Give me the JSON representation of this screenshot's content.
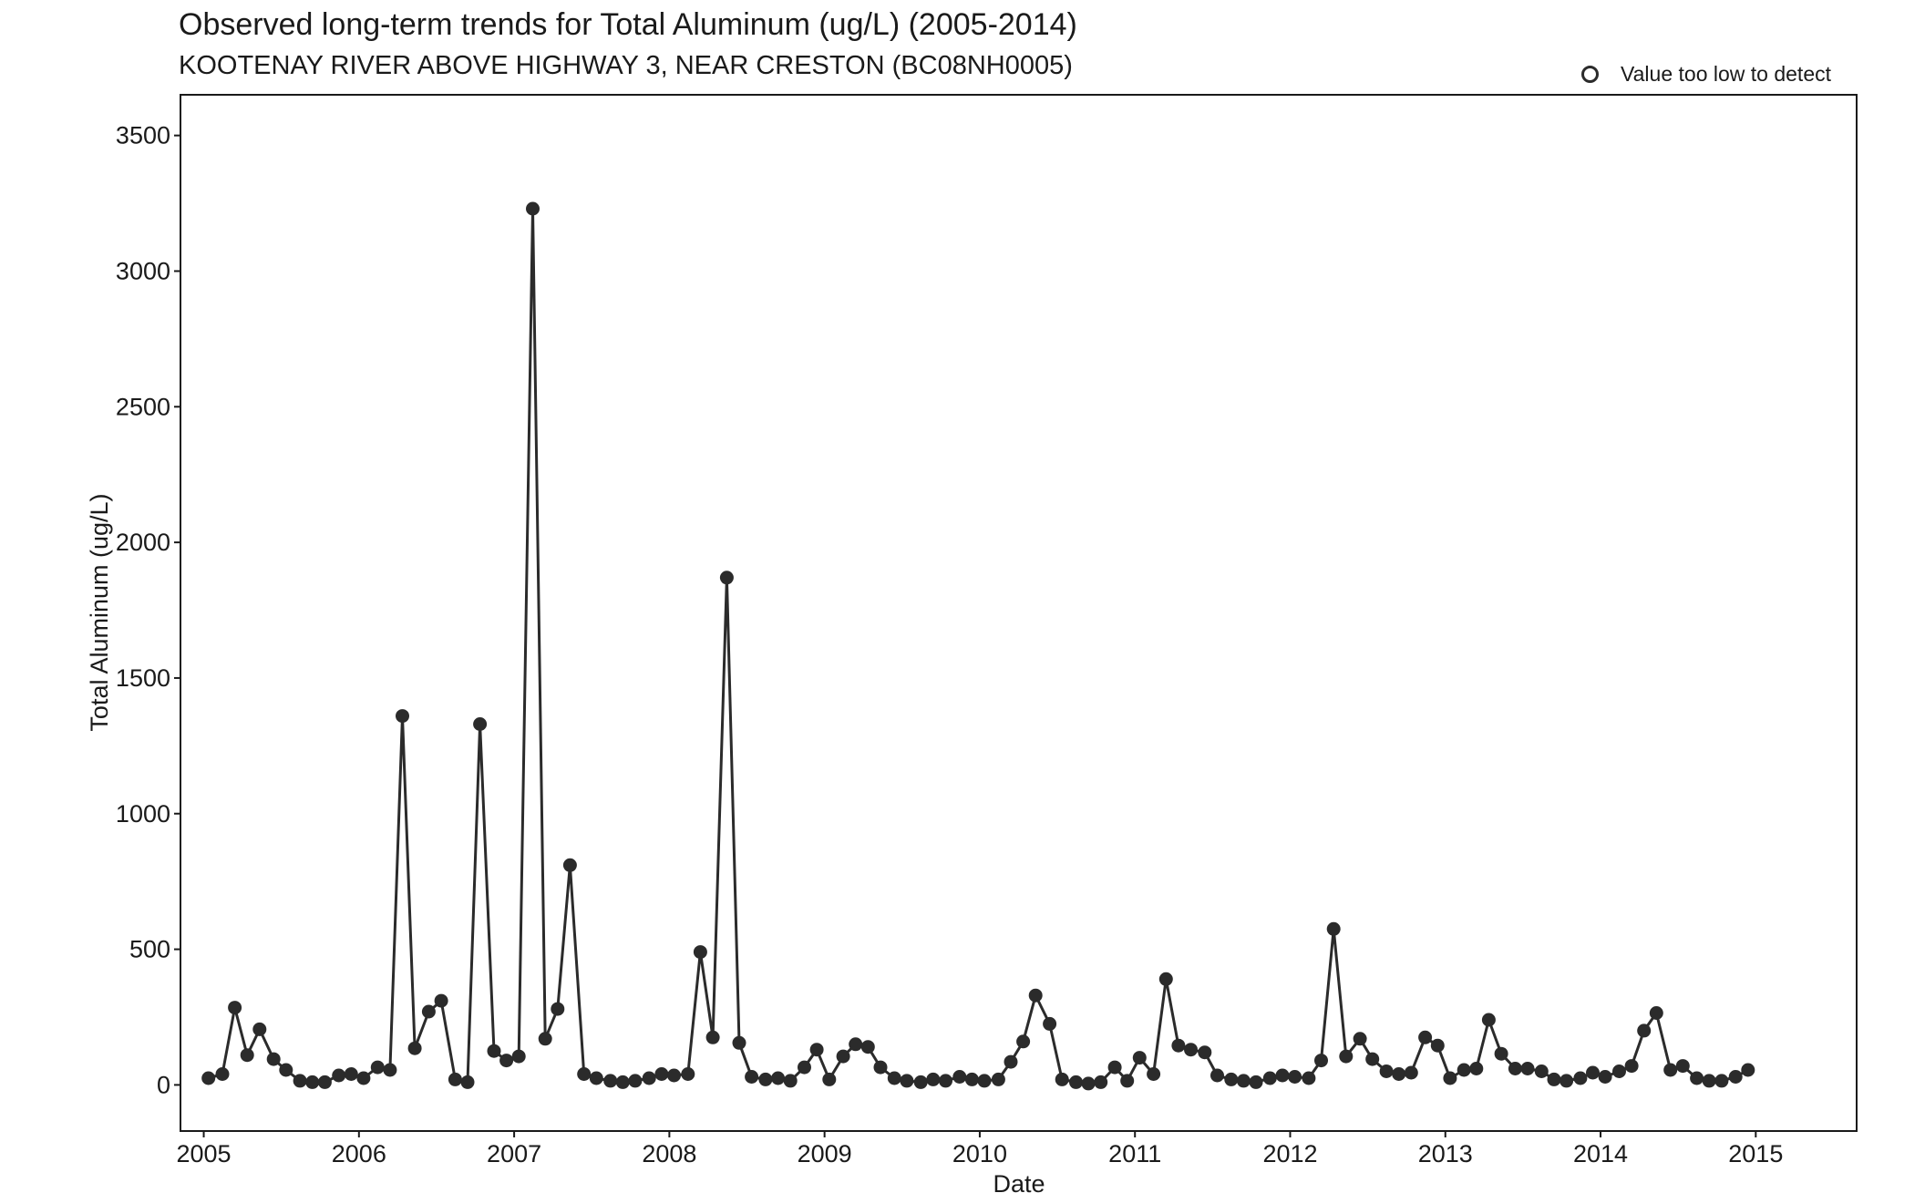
{
  "chart_data": {
    "type": "line",
    "title": "Observed long-term trends for Total Aluminum (ug/L) (2005-2014)",
    "subtitle": "KOOTENAY RIVER ABOVE HIGHWAY 3, NEAR CRESTON (BC08NH0005)",
    "xlabel": "Date",
    "ylabel": "Total Aluminum (ug/L)",
    "xlim": [
      2004.85,
      2015.65
    ],
    "ylim": [
      -170,
      3650
    ],
    "x_ticks": [
      2005,
      2006,
      2007,
      2008,
      2009,
      2010,
      2011,
      2012,
      2013,
      2014,
      2015
    ],
    "x_tick_labels": [
      "2005",
      "2006",
      "2007",
      "2008",
      "2009",
      "2010",
      "2011",
      "2012",
      "2013",
      "2014",
      "2015"
    ],
    "y_ticks": [
      0,
      500,
      1000,
      1500,
      2000,
      2500,
      3000,
      3500
    ],
    "y_tick_labels": [
      "0",
      "500",
      "1000",
      "1500",
      "2000",
      "2500",
      "3000",
      "3500"
    ],
    "grid": false,
    "legend": {
      "position": "top-right",
      "entries": [
        {
          "label": "Value too low to detect",
          "marker": "open-circle"
        }
      ]
    },
    "colors": {
      "series": "#2b2b2b",
      "axis": "#1a1a1a"
    },
    "series": [
      {
        "x": [
          2005.03,
          2005.12,
          2005.2,
          2005.28,
          2005.36,
          2005.45,
          2005.53,
          2005.62,
          2005.7,
          2005.78,
          2005.87,
          2005.95,
          2006.03,
          2006.12,
          2006.2,
          2006.28,
          2006.36,
          2006.45,
          2006.53,
          2006.62,
          2006.7,
          2006.78,
          2006.87,
          2006.95,
          2007.03,
          2007.12,
          2007.2,
          2007.28,
          2007.36,
          2007.45,
          2007.53,
          2007.62,
          2007.7,
          2007.78,
          2007.87,
          2007.95,
          2008.03,
          2008.12,
          2008.2,
          2008.28,
          2008.37,
          2008.45,
          2008.53,
          2008.62,
          2008.7,
          2008.78,
          2008.87,
          2008.95,
          2009.03,
          2009.12,
          2009.2,
          2009.28,
          2009.36,
          2009.45,
          2009.53,
          2009.62,
          2009.7,
          2009.78,
          2009.87,
          2009.95,
          2010.03,
          2010.12,
          2010.2,
          2010.28,
          2010.36,
          2010.45,
          2010.53,
          2010.62,
          2010.7,
          2010.78,
          2010.87,
          2010.95,
          2011.03,
          2011.12,
          2011.2,
          2011.28,
          2011.36,
          2011.45,
          2011.53,
          2011.62,
          2011.7,
          2011.78,
          2011.87,
          2011.95,
          2012.03,
          2012.12,
          2012.2,
          2012.28,
          2012.36,
          2012.45,
          2012.53,
          2012.62,
          2012.7,
          2012.78,
          2012.87,
          2012.95,
          2013.03,
          2013.12,
          2013.2,
          2013.28,
          2013.36,
          2013.45,
          2013.53,
          2013.62,
          2013.7,
          2013.78,
          2013.87,
          2013.95,
          2014.03,
          2014.12,
          2014.2,
          2014.28,
          2014.36,
          2014.45,
          2014.53,
          2014.62,
          2014.7,
          2014.78,
          2014.87,
          2014.95
        ],
        "y": [
          25,
          40,
          285,
          110,
          205,
          95,
          55,
          15,
          10,
          10,
          35,
          40,
          25,
          65,
          55,
          1360,
          135,
          270,
          310,
          20,
          10,
          1330,
          125,
          90,
          105,
          3230,
          170,
          280,
          810,
          40,
          25,
          15,
          10,
          15,
          25,
          40,
          35,
          40,
          490,
          175,
          1870,
          155,
          30,
          20,
          25,
          15,
          65,
          130,
          20,
          105,
          150,
          140,
          65,
          25,
          15,
          10,
          20,
          15,
          30,
          20,
          15,
          20,
          85,
          160,
          330,
          225,
          20,
          10,
          5,
          10,
          65,
          15,
          100,
          40,
          390,
          145,
          130,
          120,
          35,
          20,
          15,
          10,
          25,
          35,
          30,
          25,
          90,
          575,
          105,
          170,
          95,
          50,
          40,
          45,
          175,
          145,
          25,
          55,
          60,
          240,
          115,
          60,
          60,
          50,
          20,
          15,
          25,
          45,
          30,
          50,
          70,
          200,
          265,
          55,
          70,
          25,
          15,
          15,
          30,
          55
        ]
      }
    ]
  }
}
